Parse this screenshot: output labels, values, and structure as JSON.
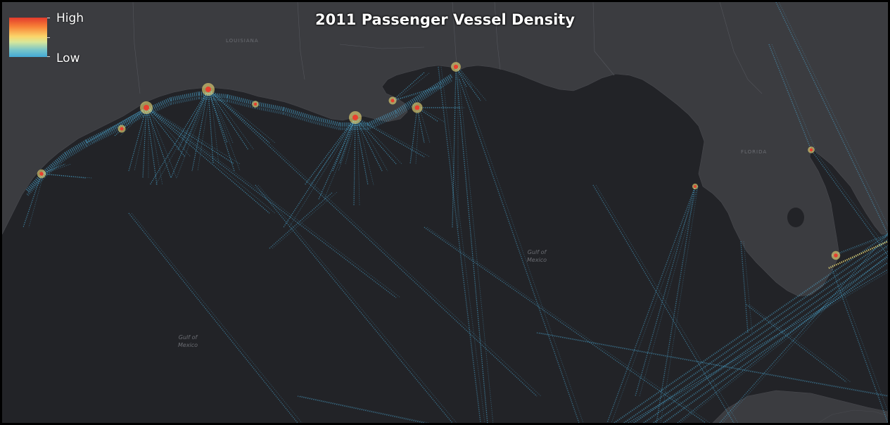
{
  "map": {
    "title": "2011 Passenger Vessel Density",
    "legend": {
      "high_label": "High",
      "low_label": "Low",
      "gradient_colors": [
        "#e23a2c",
        "#f77e36",
        "#fbd56a",
        "#d8e79a",
        "#79c6c9",
        "#43a9d6"
      ]
    },
    "basemap": {
      "style": "dark gray canvas",
      "land_color": "#3b3c40",
      "water_color": "#222327",
      "labels": {
        "louisiana": "LOUISIANA",
        "florida": "FLORIDA",
        "gulf_east": "Gulf of\nMexico",
        "gulf_west": "Gulf of\nMexico"
      }
    },
    "density_colors": {
      "low": "#4fb3e0",
      "mid": "#f3e07a",
      "high": "#e8402f"
    }
  }
}
